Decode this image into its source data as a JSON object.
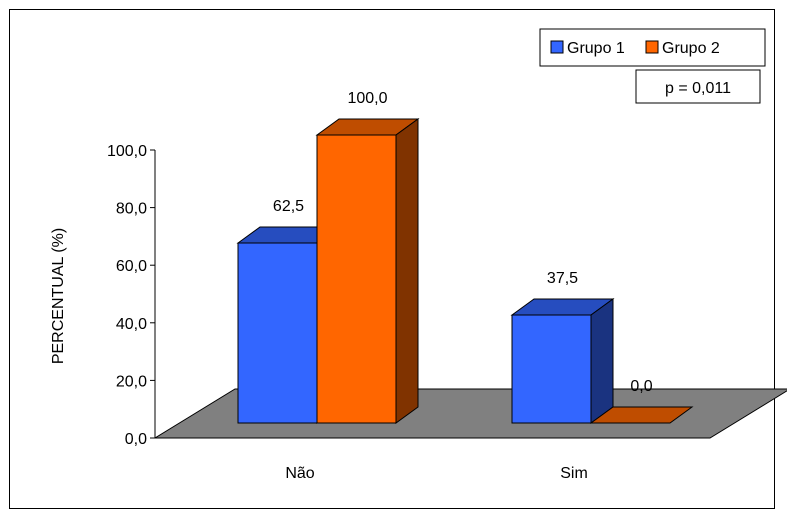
{
  "chart_data": {
    "type": "bar",
    "variant": "3d-clustered-column",
    "categories": [
      "Não",
      "Sim"
    ],
    "series": [
      {
        "name": "Grupo 1",
        "values": [
          62.5,
          37.5
        ],
        "color": "#3366FF"
      },
      {
        "name": "Grupo 2",
        "values": [
          100.0,
          0.0
        ],
        "color": "#FF6600"
      }
    ],
    "data_labels": [
      [
        "62,5",
        "37,5"
      ],
      [
        "100,0",
        "0,0"
      ]
    ],
    "ylabel": "PERCENTUAL (%)",
    "ylim": [
      0,
      100
    ],
    "yticks": [
      "0,0",
      "20,0",
      "40,0",
      "60,0",
      "80,0",
      "100,0"
    ],
    "legend_position": "top-right",
    "annotation": "p = 0,011",
    "grid": false,
    "floor_color": "#808080"
  }
}
